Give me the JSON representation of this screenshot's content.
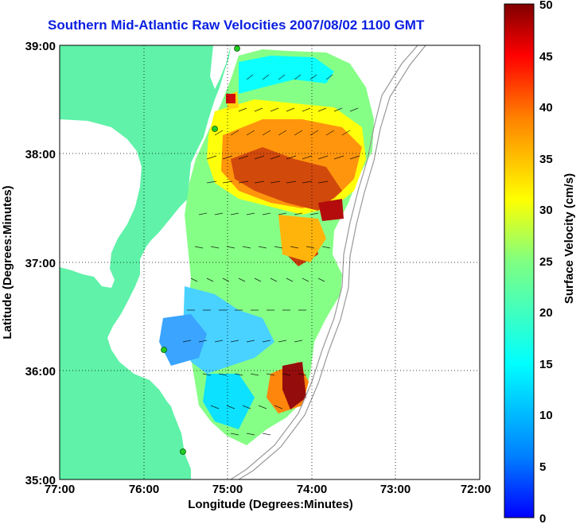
{
  "title": "Southern Mid-Atlantic Raw Velocities 2007/08/02 1100 GMT",
  "x_axis": {
    "label": "Longitude (Degrees:Minutes)",
    "ticks": [
      "77:00",
      "76:00",
      "75:00",
      "74:00",
      "73:00",
      "72:00"
    ]
  },
  "y_axis": {
    "label": "Latitude (Degrees:Minutes)",
    "ticks": [
      "39:00",
      "38:00",
      "37:00",
      "36:00",
      "35:00"
    ]
  },
  "colorbar": {
    "label": "Surface Velocity (cm/s)",
    "ticks": [
      "50",
      "45",
      "40",
      "35",
      "30",
      "25",
      "20",
      "15",
      "10",
      "5",
      "0"
    ],
    "min": 0,
    "max": 50
  },
  "colors": {
    "land": "#5ff2a8",
    "title": "#0a1ee0",
    "arrows": "#000000",
    "stations": "#22cc22"
  }
}
